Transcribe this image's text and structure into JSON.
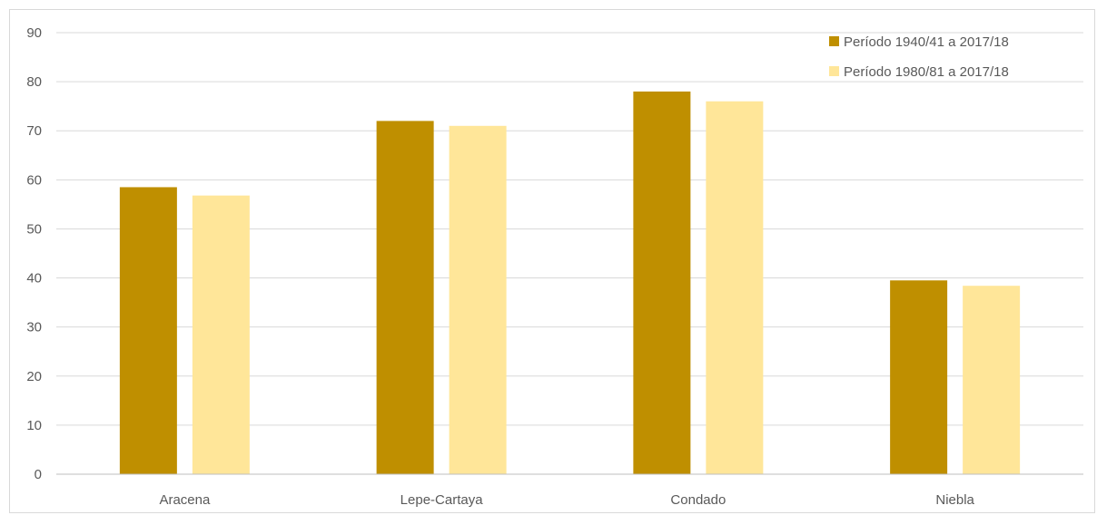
{
  "chart_data": {
    "type": "bar",
    "title": "",
    "xlabel": "",
    "ylabel": "",
    "categories": [
      "Aracena",
      "Lepe-Cartaya",
      "Condado",
      "Niebla"
    ],
    "series": [
      {
        "name": "Período 1940/41 a 2017/18",
        "values": [
          58.5,
          72,
          78,
          39.5
        ]
      },
      {
        "name": "Período 1980/81 a 2017/18",
        "values": [
          56.8,
          71,
          76,
          38.4
        ]
      }
    ],
    "ylim": [
      0,
      90
    ],
    "yticks": [
      0,
      10,
      20,
      30,
      40,
      50,
      60,
      70,
      80,
      90
    ],
    "grid": true,
    "legend_position": "top-right"
  },
  "colors": {
    "series": [
      "#bf8f00",
      "#ffe699"
    ],
    "grid": "#d9d9d9",
    "axis": "#bfbfbf",
    "text": "#595959"
  }
}
